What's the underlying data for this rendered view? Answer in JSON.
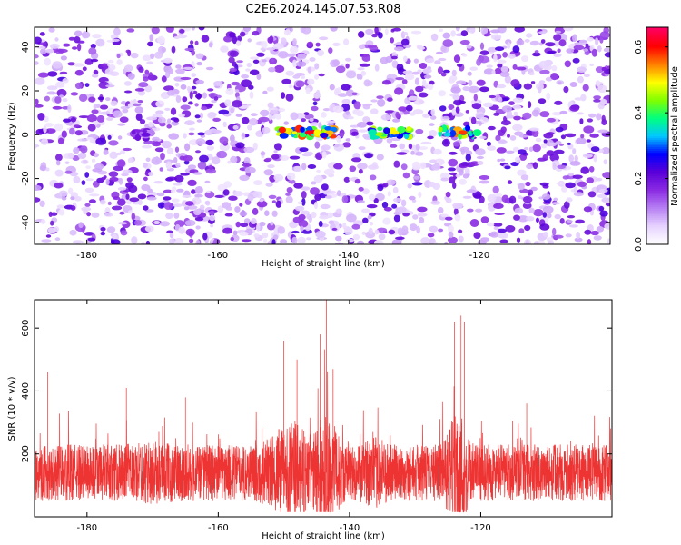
{
  "title": "C2E6.2024.145.07.53.R08",
  "colors": {
    "snr_line": "#ee3333",
    "colormap": [
      "#ffffff",
      "#e6d2ff",
      "#b780f4",
      "#8a2be2",
      "#5a00d8",
      "#0000ff",
      "#00c8ff",
      "#00ff80",
      "#80ff00",
      "#ffff00",
      "#ff8000",
      "#ff0000",
      "#ff0060"
    ]
  },
  "chart_data": [
    {
      "type": "heatmap",
      "xlabel": "Height of straight line (km)",
      "ylabel": "Frequency (Hz)",
      "xlim": [
        -188,
        -100
      ],
      "ylim": [
        -50,
        49
      ],
      "xticks": [
        -180,
        -160,
        -140,
        -120
      ],
      "xtick_labels": [
        "-180",
        "-160",
        "-140",
        "-120"
      ],
      "yticks": [
        -40,
        -20,
        0,
        20,
        40
      ],
      "ytick_labels": [
        "-40",
        "-20",
        "0",
        "20",
        "40"
      ],
      "grid": false,
      "colorbar": {
        "label": "Normalized spectral amplitude",
        "range": [
          0,
          0.66
        ],
        "ticks": [
          0,
          0.2,
          0.4,
          0.6
        ],
        "tick_labels": [
          "0.0",
          "0.2",
          "0.4",
          "0.6"
        ]
      },
      "features": [
        {
          "x_range": [
            -151,
            -142
          ],
          "freq": 1,
          "peak": 0.62
        },
        {
          "x_range": [
            -137,
            -130
          ],
          "freq": 1,
          "peak": 0.5
        },
        {
          "x_range": [
            -126,
            -120
          ],
          "freq": 1,
          "peak": 0.58
        },
        {
          "x_range": [
            -173,
            -170
          ],
          "freq": 0,
          "peak": 0.2
        },
        {
          "x_range": [
            -101,
            -100
          ],
          "freq": 29,
          "peak": 0.2
        }
      ]
    },
    {
      "type": "line",
      "xlabel": "Height of straight line (km)",
      "ylabel": "SNR (10 * v/v)",
      "xlim": [
        -188,
        -100
      ],
      "ylim": [
        0,
        690
      ],
      "xticks": [
        -180,
        -160,
        -140,
        -120
      ],
      "xtick_labels": [
        "-180",
        "-160",
        "-140",
        "-120"
      ],
      "yticks": [
        200,
        400,
        600
      ],
      "ytick_labels": [
        "200",
        "400",
        "600"
      ],
      "grid": false,
      "baseline": 140,
      "noise_amplitude": 90,
      "spikes": [
        {
          "x": -150,
          "y": 560
        },
        {
          "x": -148,
          "y": 500
        },
        {
          "x": -144.5,
          "y": 580
        },
        {
          "x": -143.5,
          "y": 690
        },
        {
          "x": -142.5,
          "y": 470
        },
        {
          "x": -124,
          "y": 620
        },
        {
          "x": -123,
          "y": 640
        },
        {
          "x": -122.5,
          "y": 620
        },
        {
          "x": -186,
          "y": 460
        },
        {
          "x": -174,
          "y": 410
        },
        {
          "x": -165,
          "y": 380
        },
        {
          "x": -113,
          "y": 360
        }
      ]
    }
  ]
}
